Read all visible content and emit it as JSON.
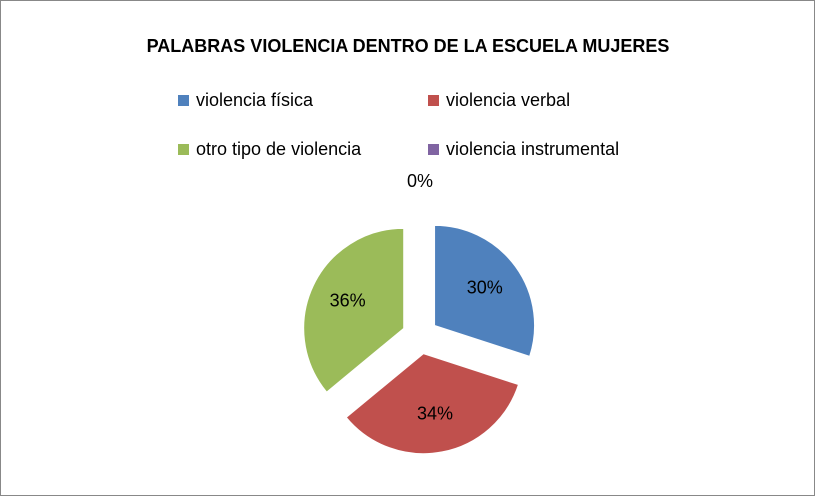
{
  "chart_data": {
    "type": "pie",
    "title": "PALABRAS VIOLENCIA DENTRO DE LA ESCUELA MUJERES",
    "categories": [
      "violencia física",
      "violencia verbal",
      "otro tipo de violencia",
      "violencia instrumental"
    ],
    "values": [
      30,
      34,
      36,
      0
    ],
    "value_labels": [
      "30%",
      "34%",
      "36%",
      "0%"
    ],
    "colors": [
      "#4f81bd",
      "#c0504d",
      "#9bbb59",
      "#8064a2"
    ],
    "exploded": true
  }
}
